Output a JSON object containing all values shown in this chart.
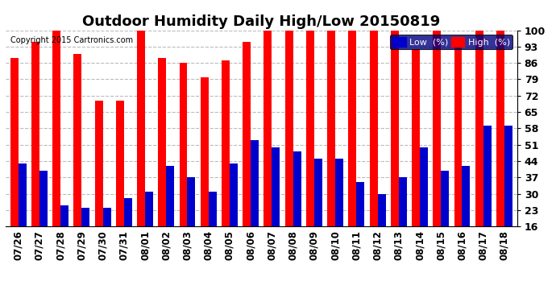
{
  "title": "Outdoor Humidity Daily High/Low 20150819",
  "copyright": "Copyright 2015 Cartronics.com",
  "dates": [
    "07/26",
    "07/27",
    "07/28",
    "07/29",
    "07/30",
    "07/31",
    "08/01",
    "08/02",
    "08/03",
    "08/04",
    "08/05",
    "08/06",
    "08/07",
    "08/08",
    "08/09",
    "08/10",
    "08/11",
    "08/12",
    "08/13",
    "08/14",
    "08/15",
    "08/16",
    "08/17",
    "08/18"
  ],
  "high": [
    88,
    95,
    100,
    90,
    70,
    70,
    100,
    88,
    86,
    80,
    87,
    95,
    100,
    100,
    100,
    100,
    100,
    100,
    100,
    92,
    100,
    95,
    100,
    100
  ],
  "low": [
    43,
    40,
    25,
    24,
    24,
    28,
    31,
    42,
    37,
    31,
    43,
    53,
    50,
    48,
    45,
    45,
    35,
    30,
    37,
    50,
    40,
    42,
    59,
    59
  ],
  "high_color": "#ff0000",
  "low_color": "#0000cc",
  "bg_color": "#ffffff",
  "grid_color": "#bbbbbb",
  "ylim_min": 16,
  "ylim_max": 100,
  "yticks": [
    16,
    23,
    30,
    37,
    44,
    51,
    58,
    65,
    72,
    79,
    86,
    93,
    100
  ],
  "title_fontsize": 13,
  "legend_low_label": "Low  (%)",
  "legend_high_label": "High  (%)",
  "legend_bg": "#000080",
  "bar_bottom": 16
}
